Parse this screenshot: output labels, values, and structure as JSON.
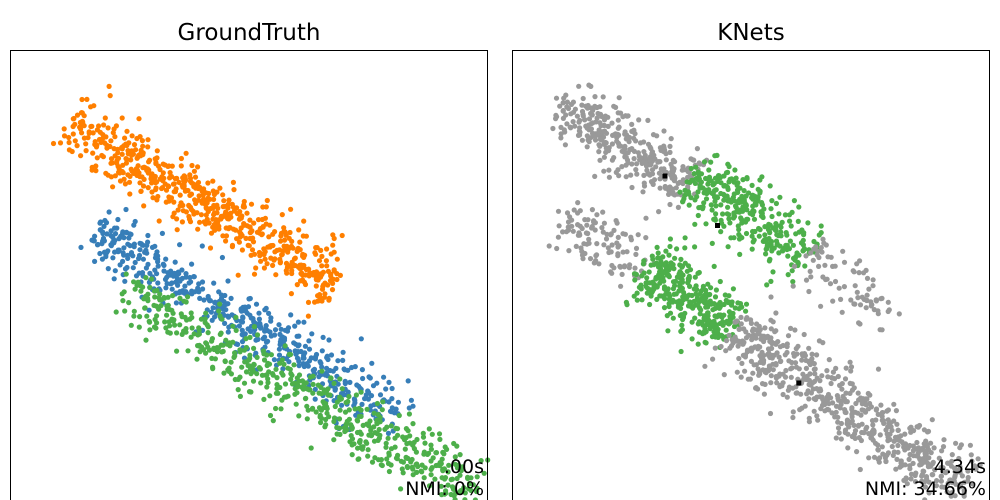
{
  "colors": {
    "orange": "#ff7f00",
    "blue": "#377eb8",
    "green": "#4daf4a",
    "gray": "#999999",
    "center": "#000000",
    "frame": "#000000"
  },
  "chart_data": [
    {
      "type": "scatter",
      "title": "GroundTruth",
      "time_text": ".00s",
      "nmi_text": "NMI: 0%",
      "xlim": [
        0,
        100
      ],
      "ylim": [
        0,
        100
      ],
      "clusters": [
        {
          "color": "orange",
          "n": 620,
          "start": [
            12,
            84
          ],
          "end": [
            68,
            48
          ],
          "spread": 3.2,
          "seed": 11
        },
        {
          "color": "blue",
          "n": 520,
          "start": [
            18,
            60
          ],
          "end": [
            82,
            18
          ],
          "spread": 3.0,
          "seed": 23
        },
        {
          "color": "green",
          "n": 560,
          "start": [
            24,
            46
          ],
          "end": [
            98,
            2
          ],
          "spread": 3.3,
          "seed": 37
        }
      ],
      "centers": []
    },
    {
      "type": "scatter",
      "title": "KNets",
      "time_text": "4.34s",
      "nmi_text": "NMI: 34.66%",
      "xlim": [
        0,
        100
      ],
      "ylim": [
        0,
        100
      ],
      "clusters": [
        {
          "color": "gray",
          "n": 330,
          "start": [
            10,
            88
          ],
          "end": [
            38,
            70
          ],
          "spread": 3.0,
          "seed": 51
        },
        {
          "color": "green",
          "n": 330,
          "start": [
            38,
            72
          ],
          "end": [
            62,
            54
          ],
          "spread": 3.3,
          "seed": 63
        },
        {
          "color": "gray",
          "n": 80,
          "start": [
            62,
            55
          ],
          "end": [
            80,
            40
          ],
          "spread": 3.0,
          "seed": 71
        },
        {
          "color": "gray",
          "n": 110,
          "start": [
            10,
            62
          ],
          "end": [
            28,
            52
          ],
          "spread": 3.0,
          "seed": 79
        },
        {
          "color": "green",
          "n": 330,
          "start": [
            28,
            52
          ],
          "end": [
            46,
            38
          ],
          "spread": 3.3,
          "seed": 83
        },
        {
          "color": "gray",
          "n": 640,
          "start": [
            46,
            38
          ],
          "end": [
            95,
            2
          ],
          "spread": 3.6,
          "seed": 97
        }
      ],
      "centers": [
        [
          32,
          72
        ],
        [
          43,
          61
        ],
        [
          60,
          26
        ]
      ]
    }
  ]
}
